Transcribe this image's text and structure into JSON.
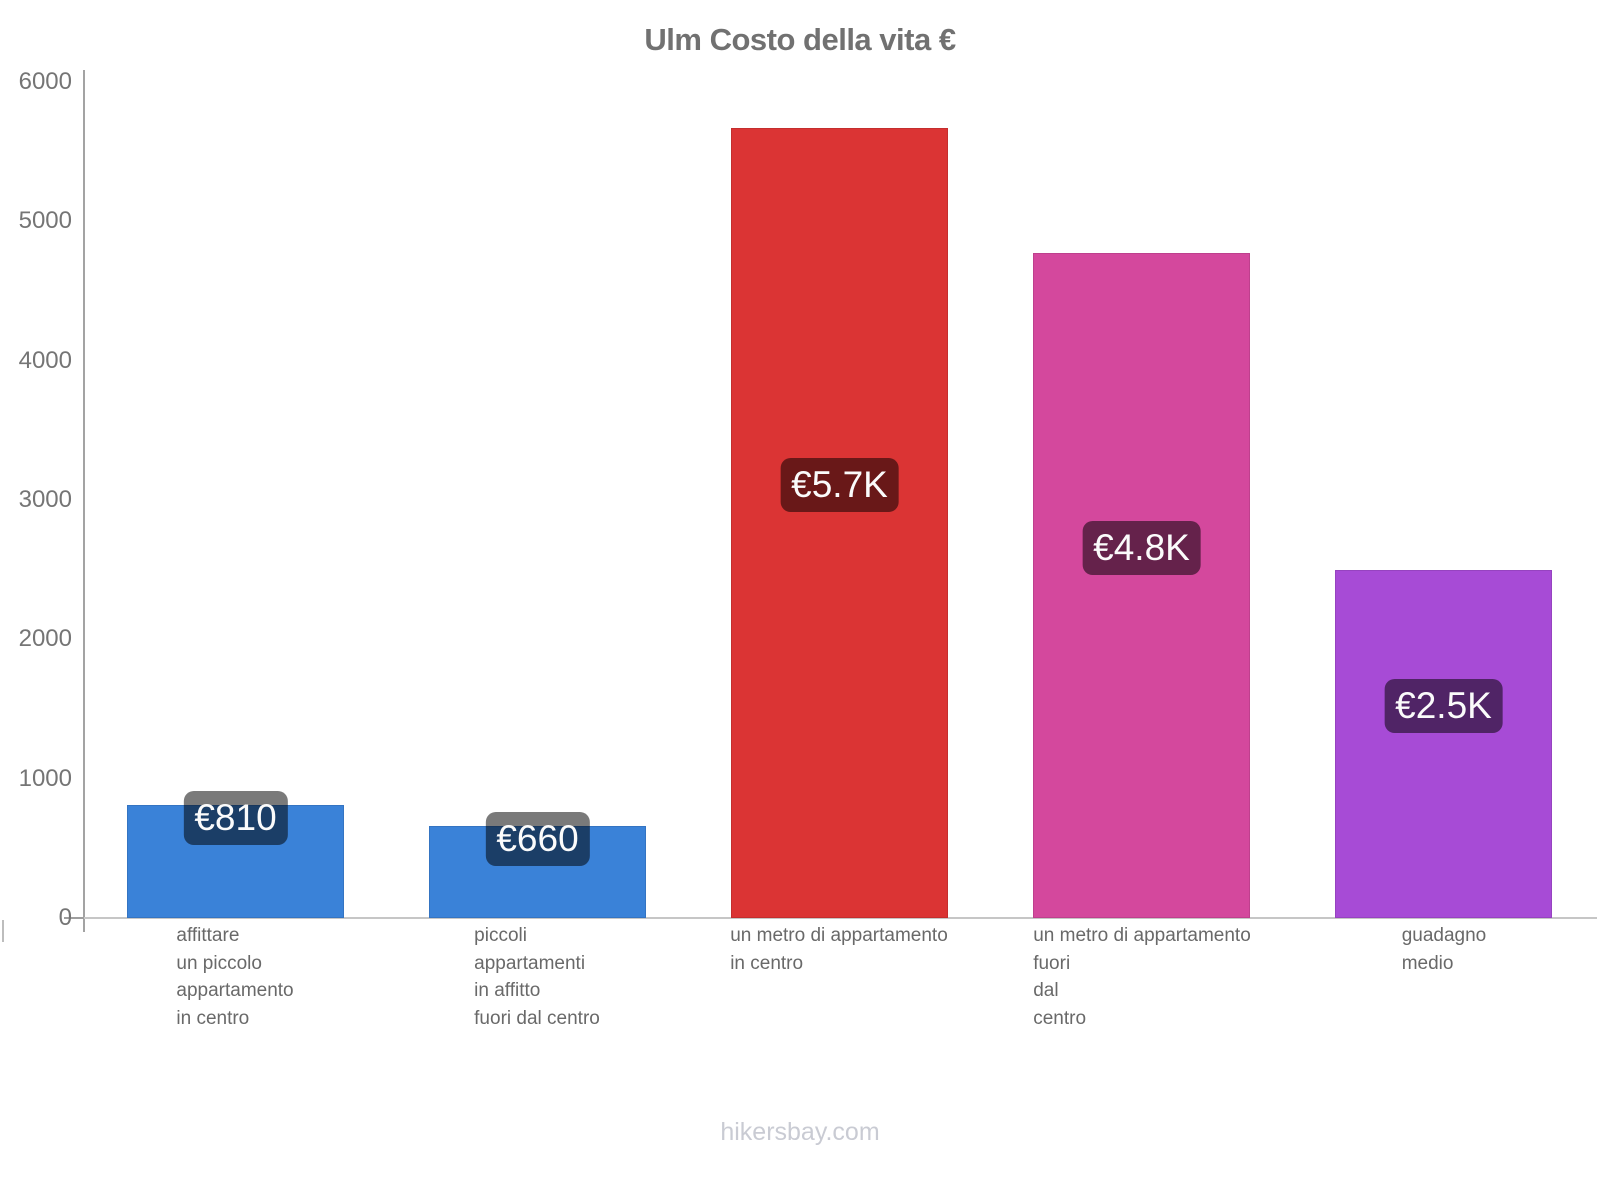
{
  "title": "Ulm Costo della vita €",
  "footer": "hikersbay.com",
  "chart_data": {
    "type": "bar",
    "title": "Ulm Costo della vita €",
    "currency": "€",
    "categories": [
      "affittare un piccolo appartamento in centro",
      "piccoli appartamenti in affitto fuori dal centro",
      "un metro di appartamento in centro",
      "un metro di appartamento fuori dal centro",
      "guadagno medio"
    ],
    "category_label_lines": [
      [
        "affittare",
        "un piccolo",
        "appartamento",
        "in centro"
      ],
      [
        "piccoli",
        "appartamenti",
        "in affitto",
        "fuori dal centro"
      ],
      [
        "un metro di appartamento",
        "in centro"
      ],
      [
        "un metro di appartamento",
        "fuori",
        "dal",
        "centro"
      ],
      [
        "guadagno",
        "medio"
      ]
    ],
    "values": [
      810,
      660,
      5670,
      4770,
      2500
    ],
    "data_labels": [
      "€810",
      "€660",
      "€5.7K",
      "€4.8K",
      "€2.5K"
    ],
    "bar_colors": [
      "#3A82D8",
      "#3A82D8",
      "#DB3434",
      "#D4489D",
      "#A74BD6"
    ],
    "data_label_bg": "rgba(0,0,0,0.52)",
    "data_label_text_color": "#FBFBFB",
    "ylim": [
      0,
      6000
    ],
    "yticks": [
      0,
      1000,
      2000,
      3000,
      4000,
      5000,
      6000
    ],
    "xlabel": "",
    "ylabel": "",
    "grid": false,
    "legend": false
  }
}
